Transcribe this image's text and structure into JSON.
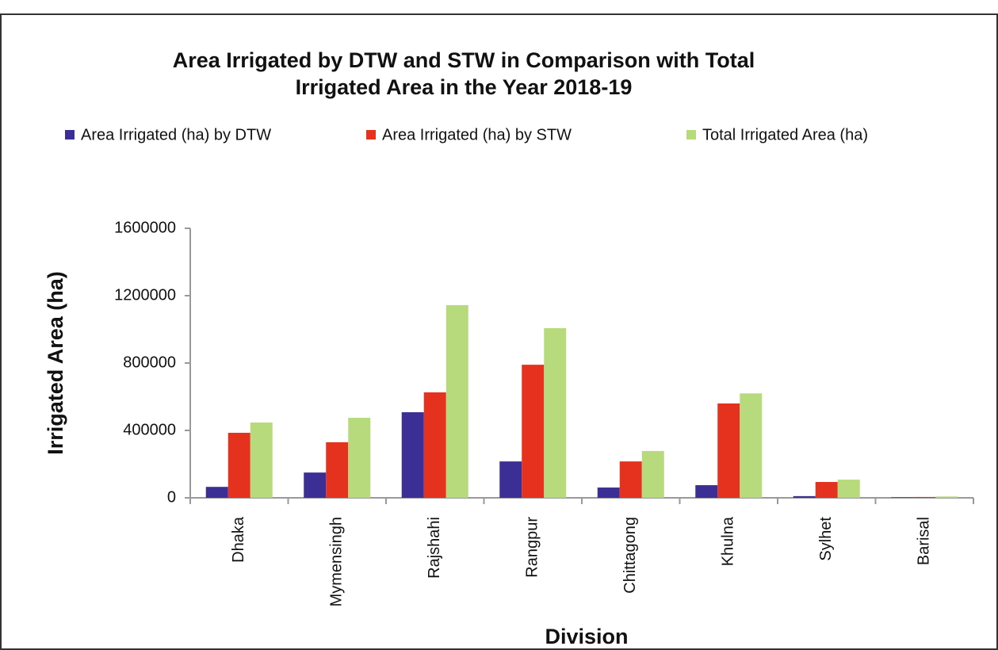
{
  "chart_data": {
    "type": "bar",
    "title": "Area Irrigated by DTW and STW in Comparison with Total",
    "subtitle": "Irrigated Area in the Year 2018-19",
    "x_label": "Division",
    "y_label": "Irrigated Area (ha)",
    "categories": [
      "Dhaka",
      "Mymensingh",
      "Rajshahi",
      "Rangpur",
      "Chittagong",
      "Khulna",
      "Sylhet",
      "Barisal"
    ],
    "series": [
      {
        "name": "Area Irrigated (ha) by DTW",
        "color": "#3b2f96",
        "values": [
          65000,
          150000,
          508000,
          216000,
          61000,
          75000,
          10000,
          3000
        ]
      },
      {
        "name": "Area Irrigated (ha) by STW",
        "color": "#e4321f",
        "values": [
          386000,
          330000,
          626000,
          790000,
          216000,
          560000,
          94000,
          5000
        ]
      },
      {
        "name": "Total Irrigated Area (ha)",
        "color": "#b7db7c",
        "values": [
          447000,
          475000,
          1144000,
          1007000,
          278000,
          620000,
          108000,
          8000
        ]
      }
    ],
    "ylim": [
      0,
      1600000
    ],
    "yticks": [
      0,
      400000,
      800000,
      1200000,
      1600000
    ],
    "legend": "top",
    "grid": false
  }
}
